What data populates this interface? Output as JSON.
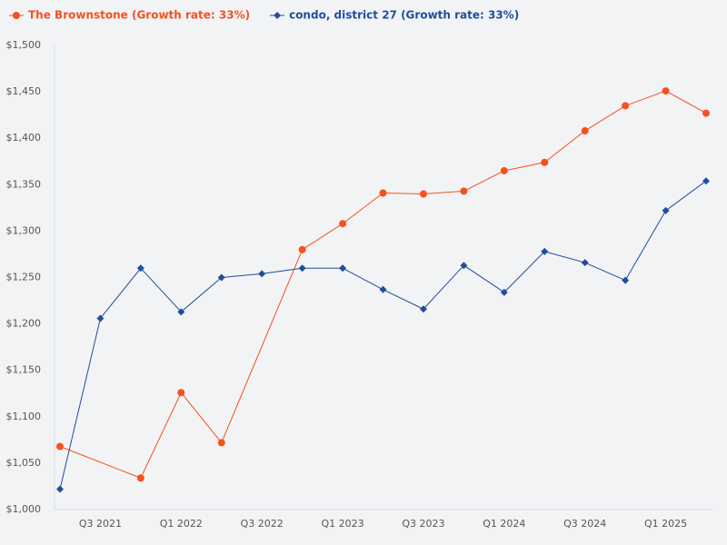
{
  "chart_data": {
    "type": "line",
    "categories": [
      null,
      "Q3 2021",
      null,
      "Q1 2022",
      null,
      "Q3 2022",
      null,
      "Q1 2023",
      null,
      "Q3 2023",
      null,
      "Q1 2024",
      null,
      "Q3 2024",
      null,
      "Q1 2025",
      null
    ],
    "series": [
      {
        "name": "The Brownstone (Growth rate: 33%)",
        "color": "#f4511e",
        "marker": "circle",
        "values": [
          1068,
          null,
          1034,
          1126,
          1072,
          null,
          1280,
          1308,
          1341,
          1340,
          1343,
          1365,
          1374,
          1408,
          1435,
          1451,
          1427
        ]
      },
      {
        "name": "condo, district 27 (Growth rate: 33%)",
        "color": "#1f4e9c",
        "marker": "diamond",
        "values": [
          1022,
          1206,
          1260,
          1213,
          1250,
          1254,
          1260,
          1260,
          1237,
          1216,
          1263,
          1234,
          1278,
          1266,
          1247,
          1322,
          1354
        ]
      }
    ],
    "ylim": [
      1000,
      1500
    ],
    "yticks": [
      {
        "value": 1000,
        "label": "$1,000"
      },
      {
        "value": 1050,
        "label": "$1,050"
      },
      {
        "value": 1100,
        "label": "$1,100"
      },
      {
        "value": 1150,
        "label": "$1,150"
      },
      {
        "value": 1200,
        "label": "$1,200"
      },
      {
        "value": 1250,
        "label": "$1,250"
      },
      {
        "value": 1300,
        "label": "$1,300"
      },
      {
        "value": 1350,
        "label": "$1,350"
      },
      {
        "value": 1400,
        "label": "$1,400"
      },
      {
        "value": 1450,
        "label": "$1,450"
      },
      {
        "value": 1500,
        "label": "$1,500"
      }
    ],
    "grid": false,
    "legend": "top-left"
  }
}
